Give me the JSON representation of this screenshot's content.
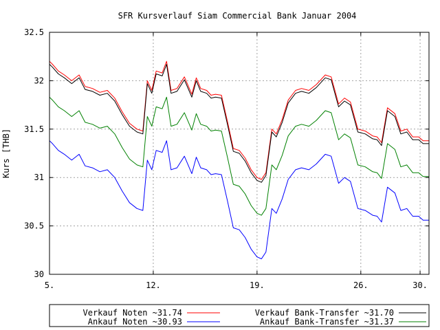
{
  "chart_data": {
    "type": "line",
    "title": "SFR Kursverlauf Siam Commercial Bank Januar 2004",
    "xlabel": "",
    "ylabel": "Kurs [THB]",
    "ylim": [
      30,
      32.5
    ],
    "yticks": [
      "30",
      "30.5",
      "31",
      "31.5",
      "32",
      "32.5"
    ],
    "xlim": [
      5,
      30.6
    ],
    "xticks": [
      {
        "value": 5,
        "label": "5."
      },
      {
        "value": 12,
        "label": "12."
      },
      {
        "value": 19,
        "label": "19."
      },
      {
        "value": 26,
        "label": "26."
      },
      {
        "value": 30,
        "label": "30."
      }
    ],
    "grid": true,
    "legend_position": "bottom",
    "series": [
      {
        "name": "Verkauf Noten ~31.74",
        "color": "#ff0000",
        "x": [
          5,
          5.2,
          5.6,
          6,
          6.5,
          7,
          7.4,
          7.9,
          8.4,
          8.9,
          9.4,
          9.9,
          10.4,
          10.9,
          11.3,
          11.6,
          11.9,
          12.2,
          12.6,
          12.9,
          13.2,
          13.6,
          14.1,
          14.6,
          14.9,
          15.2,
          15.6,
          15.9,
          16.2,
          16.6,
          17,
          17.4,
          17.8,
          18.2,
          18.6,
          19,
          19.3,
          19.6,
          20,
          20.3,
          20.7,
          21.1,
          21.6,
          22,
          22.5,
          23,
          23.6,
          24,
          24.5,
          24.9,
          25.3,
          25.8,
          26.3,
          26.8,
          27.1,
          27.4,
          27.8,
          28.3,
          28.7,
          29.1,
          29.5,
          29.9,
          30.2,
          30.6
        ],
        "values": [
          32.2,
          32.17,
          32.1,
          32.06,
          32.0,
          32.06,
          31.94,
          31.92,
          31.88,
          31.9,
          31.82,
          31.68,
          31.56,
          31.5,
          31.48,
          32.0,
          31.9,
          32.1,
          32.08,
          32.2,
          31.9,
          31.92,
          32.04,
          31.86,
          32.03,
          31.92,
          31.9,
          31.85,
          31.86,
          31.85,
          31.58,
          31.3,
          31.28,
          31.2,
          31.08,
          31.0,
          30.98,
          31.05,
          31.5,
          31.45,
          31.6,
          31.8,
          31.9,
          31.92,
          31.9,
          31.96,
          32.06,
          32.04,
          31.76,
          31.82,
          31.78,
          31.5,
          31.48,
          31.43,
          31.42,
          31.36,
          31.72,
          31.66,
          31.48,
          31.5,
          31.42,
          31.42,
          31.38,
          31.38
        ]
      },
      {
        "name": "Verkauf Bank-Transfer ~31.70",
        "color": "#000000",
        "x": [
          5,
          5.2,
          5.6,
          6,
          6.5,
          7,
          7.4,
          7.9,
          8.4,
          8.9,
          9.4,
          9.9,
          10.4,
          10.9,
          11.3,
          11.6,
          11.9,
          12.2,
          12.6,
          12.9,
          13.2,
          13.6,
          14.1,
          14.6,
          14.9,
          15.2,
          15.6,
          15.9,
          16.2,
          16.6,
          17,
          17.4,
          17.8,
          18.2,
          18.6,
          19,
          19.3,
          19.6,
          20,
          20.3,
          20.7,
          21.1,
          21.6,
          22,
          22.5,
          23,
          23.6,
          24,
          24.5,
          24.9,
          25.3,
          25.8,
          26.3,
          26.8,
          27.1,
          27.4,
          27.8,
          28.3,
          28.7,
          29.1,
          29.5,
          29.9,
          30.2,
          30.6
        ],
        "values": [
          32.17,
          32.14,
          32.07,
          32.03,
          31.97,
          32.03,
          31.91,
          31.89,
          31.85,
          31.87,
          31.79,
          31.65,
          31.53,
          31.47,
          31.45,
          31.97,
          31.87,
          32.07,
          32.05,
          32.17,
          31.87,
          31.89,
          32.01,
          31.83,
          32.0,
          31.89,
          31.87,
          31.82,
          31.83,
          31.82,
          31.55,
          31.27,
          31.25,
          31.17,
          31.05,
          30.97,
          30.95,
          31.02,
          31.47,
          31.42,
          31.57,
          31.77,
          31.87,
          31.89,
          31.87,
          31.93,
          32.03,
          32.01,
          31.73,
          31.79,
          31.75,
          31.47,
          31.45,
          31.4,
          31.39,
          31.33,
          31.69,
          31.63,
          31.45,
          31.47,
          31.39,
          31.39,
          31.35,
          31.35
        ]
      },
      {
        "name": "Ankauf Bank-Transfer ~31.37",
        "color": "#008000",
        "x": [
          5,
          5.2,
          5.6,
          6,
          6.5,
          7,
          7.4,
          7.9,
          8.4,
          8.9,
          9.4,
          9.9,
          10.4,
          10.9,
          11.3,
          11.6,
          11.9,
          12.2,
          12.6,
          12.9,
          13.2,
          13.6,
          14.1,
          14.6,
          14.9,
          15.2,
          15.6,
          15.9,
          16.2,
          16.6,
          17,
          17.4,
          17.8,
          18.2,
          18.6,
          19,
          19.3,
          19.6,
          20,
          20.3,
          20.7,
          21.1,
          21.6,
          22,
          22.5,
          23,
          23.6,
          24,
          24.5,
          24.9,
          25.3,
          25.8,
          26.3,
          26.8,
          27.1,
          27.4,
          27.8,
          28.3,
          28.7,
          29.1,
          29.5,
          29.9,
          30.2,
          30.6
        ],
        "values": [
          31.83,
          31.8,
          31.73,
          31.69,
          31.63,
          31.69,
          31.57,
          31.55,
          31.51,
          31.53,
          31.45,
          31.31,
          31.19,
          31.13,
          31.11,
          31.63,
          31.53,
          31.73,
          31.71,
          31.83,
          31.53,
          31.55,
          31.67,
          31.49,
          31.66,
          31.55,
          31.53,
          31.48,
          31.49,
          31.48,
          31.21,
          30.93,
          30.91,
          30.83,
          30.71,
          30.63,
          30.61,
          30.68,
          31.13,
          31.08,
          31.23,
          31.43,
          31.53,
          31.55,
          31.53,
          31.59,
          31.69,
          31.67,
          31.39,
          31.45,
          31.41,
          31.13,
          31.11,
          31.06,
          31.05,
          30.99,
          31.35,
          31.29,
          31.11,
          31.13,
          31.05,
          31.05,
          31.01,
          31.01
        ]
      },
      {
        "name": "Ankauf Noten ~30.93",
        "color": "#0000ff",
        "x": [
          5,
          5.2,
          5.6,
          6,
          6.5,
          7,
          7.4,
          7.9,
          8.4,
          8.9,
          9.4,
          9.9,
          10.4,
          10.9,
          11.3,
          11.6,
          11.9,
          12.2,
          12.6,
          12.9,
          13.2,
          13.6,
          14.1,
          14.6,
          14.9,
          15.2,
          15.6,
          15.9,
          16.2,
          16.6,
          17,
          17.4,
          17.8,
          18.2,
          18.6,
          19,
          19.3,
          19.6,
          20,
          20.3,
          20.7,
          21.1,
          21.6,
          22,
          22.5,
          23,
          23.6,
          24,
          24.5,
          24.9,
          25.3,
          25.8,
          26.3,
          26.8,
          27.1,
          27.4,
          27.8,
          28.3,
          28.7,
          29.1,
          29.5,
          29.9,
          30.2,
          30.6
        ],
        "values": [
          31.38,
          31.35,
          31.28,
          31.24,
          31.18,
          31.24,
          31.12,
          31.1,
          31.06,
          31.08,
          31.0,
          30.86,
          30.74,
          30.68,
          30.66,
          31.18,
          31.08,
          31.28,
          31.26,
          31.38,
          31.08,
          31.1,
          31.22,
          31.04,
          31.21,
          31.1,
          31.08,
          31.03,
          31.04,
          31.03,
          30.76,
          30.48,
          30.46,
          30.38,
          30.26,
          30.18,
          30.16,
          30.23,
          30.68,
          30.63,
          30.78,
          30.98,
          31.08,
          31.1,
          31.08,
          31.14,
          31.24,
          31.22,
          30.94,
          31.0,
          30.96,
          30.68,
          30.66,
          30.61,
          30.6,
          30.54,
          30.9,
          30.84,
          30.66,
          30.68,
          30.6,
          30.6,
          30.56,
          30.56
        ]
      }
    ],
    "legend": [
      {
        "label": "Verkauf Noten ~31.74",
        "color": "#ff0000"
      },
      {
        "label": "Verkauf Bank-Transfer ~31.70",
        "color": "#000000"
      },
      {
        "label": "Ankauf Noten ~30.93",
        "color": "#0000ff"
      },
      {
        "label": "Ankauf Bank-Transfer ~31.37",
        "color": "#008000"
      }
    ]
  }
}
